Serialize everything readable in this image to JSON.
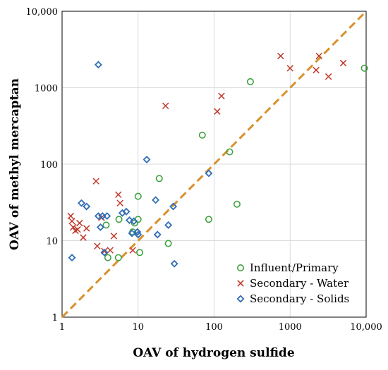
{
  "chart_data": {
    "type": "scatter",
    "title": "",
    "xlabel": "OAV of hydrogen sulfide",
    "ylabel": "OAV of methyl mercaptan",
    "x_scale": "log",
    "y_scale": "log",
    "xlim": [
      1,
      10000
    ],
    "ylim": [
      1,
      10000
    ],
    "x_ticks": [
      "1",
      "10",
      "100",
      "1000",
      "10,000"
    ],
    "y_ticks": [
      "1",
      "10",
      "100",
      "1000",
      "10,000"
    ],
    "grid": true,
    "legend_position": "bottom-right",
    "reference_line": {
      "type": "1:1",
      "color": "#d9902b",
      "style": "dashed"
    },
    "series": [
      {
        "name": "Influent/Primary",
        "marker": "circle",
        "color": "#3fa33f",
        "points": [
          [
            4,
            6
          ],
          [
            5.5,
            6
          ],
          [
            3.8,
            16
          ],
          [
            5.6,
            19
          ],
          [
            8.5,
            13
          ],
          [
            9,
            17
          ],
          [
            10,
            19
          ],
          [
            10,
            38
          ],
          [
            10.5,
            7
          ],
          [
            19,
            65
          ],
          [
            25,
            9.2
          ],
          [
            70,
            240
          ],
          [
            85,
            19
          ],
          [
            160,
            145
          ],
          [
            200,
            30
          ],
          [
            300,
            1200
          ],
          [
            9500,
            1800
          ]
        ]
      },
      {
        "name": "Secondary - Water",
        "marker": "x",
        "color": "#c0392b",
        "points": [
          [
            1.3,
            21
          ],
          [
            1.35,
            18
          ],
          [
            1.4,
            15
          ],
          [
            1.5,
            13.5
          ],
          [
            1.6,
            14
          ],
          [
            1.7,
            17
          ],
          [
            1.9,
            11
          ],
          [
            2.1,
            14.5
          ],
          [
            2.8,
            60
          ],
          [
            2.9,
            8.5
          ],
          [
            3.3,
            20
          ],
          [
            3.6,
            7.3
          ],
          [
            4.3,
            7.5
          ],
          [
            4.8,
            11.5
          ],
          [
            5.5,
            40
          ],
          [
            5.8,
            31
          ],
          [
            8.5,
            7.5
          ],
          [
            23,
            580
          ],
          [
            110,
            490
          ],
          [
            125,
            780
          ],
          [
            750,
            2600
          ],
          [
            1000,
            1800
          ],
          [
            2200,
            1700
          ],
          [
            2400,
            2600
          ],
          [
            3200,
            1400
          ],
          [
            5000,
            2100
          ]
        ]
      },
      {
        "name": "Secondary - Solids",
        "marker": "diamond",
        "color": "#2f6db5",
        "points": [
          [
            1.35,
            6
          ],
          [
            1.8,
            31
          ],
          [
            2.1,
            28
          ],
          [
            3,
            21
          ],
          [
            3.2,
            15
          ],
          [
            3.4,
            21
          ],
          [
            3.6,
            7
          ],
          [
            3.9,
            21
          ],
          [
            3,
            2000
          ],
          [
            6.2,
            23
          ],
          [
            7,
            24
          ],
          [
            7.7,
            18.5
          ],
          [
            8.3,
            12.5
          ],
          [
            8.8,
            18
          ],
          [
            9.8,
            13
          ],
          [
            10,
            12
          ],
          [
            13,
            115
          ],
          [
            17,
            34
          ],
          [
            18,
            12
          ],
          [
            25,
            16
          ],
          [
            29,
            28
          ],
          [
            30,
            5
          ],
          [
            85,
            76
          ]
        ]
      }
    ]
  }
}
